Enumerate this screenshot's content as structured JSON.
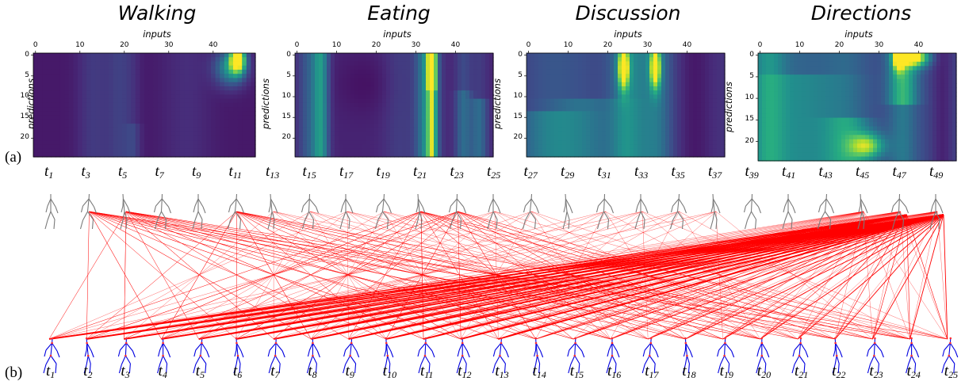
{
  "figure": {
    "label_a": "(a)",
    "label_b": "(b)"
  },
  "heatmaps": {
    "x_axis_title": "inputs",
    "y_axis_title": "predictions",
    "x_ticks": [
      "0",
      "10",
      "20",
      "30",
      "40"
    ],
    "y_ticks": [
      "0",
      "5",
      "10",
      "15",
      "20"
    ],
    "colormap": [
      "#440154",
      "#472c7a",
      "#3b518b",
      "#2c718e",
      "#21908d",
      "#27ad81",
      "#5cc863",
      "#aadc32",
      "#fde725"
    ],
    "panels": [
      {
        "title": "Walking"
      },
      {
        "title": "Eating"
      },
      {
        "title": "Discussion"
      },
      {
        "title": "Directions"
      }
    ]
  },
  "inputs_row": {
    "labels": [
      {
        "base": "t",
        "sub": "1"
      },
      {
        "base": "t",
        "sub": "3"
      },
      {
        "base": "t",
        "sub": "5"
      },
      {
        "base": "t",
        "sub": "7"
      },
      {
        "base": "t",
        "sub": "9"
      },
      {
        "base": "t",
        "sub": "11"
      },
      {
        "base": "t",
        "sub": "13"
      },
      {
        "base": "t",
        "sub": "15"
      },
      {
        "base": "t",
        "sub": "17"
      },
      {
        "base": "t",
        "sub": "19"
      },
      {
        "base": "t",
        "sub": "21"
      },
      {
        "base": "t",
        "sub": "23"
      },
      {
        "base": "t",
        "sub": "25"
      },
      {
        "base": "t",
        "sub": "27"
      },
      {
        "base": "t",
        "sub": "29"
      },
      {
        "base": "t",
        "sub": "31"
      },
      {
        "base": "t",
        "sub": "33"
      },
      {
        "base": "t",
        "sub": "35"
      },
      {
        "base": "t",
        "sub": "37"
      },
      {
        "base": "t",
        "sub": "39"
      },
      {
        "base": "t",
        "sub": "41"
      },
      {
        "base": "t",
        "sub": "43"
      },
      {
        "base": "t",
        "sub": "45"
      },
      {
        "base": "t",
        "sub": "47"
      },
      {
        "base": "t",
        "sub": "49"
      }
    ],
    "figure_color": "#7a7a7a"
  },
  "predictions_row": {
    "labels": [
      {
        "base": "t",
        "sub": "1"
      },
      {
        "base": "t",
        "sub": "2"
      },
      {
        "base": "t",
        "sub": "3"
      },
      {
        "base": "t",
        "sub": "4"
      },
      {
        "base": "t",
        "sub": "5"
      },
      {
        "base": "t",
        "sub": "6"
      },
      {
        "base": "t",
        "sub": "7"
      },
      {
        "base": "t",
        "sub": "8"
      },
      {
        "base": "t",
        "sub": "9"
      },
      {
        "base": "t",
        "sub": "10"
      },
      {
        "base": "t",
        "sub": "11"
      },
      {
        "base": "t",
        "sub": "12"
      },
      {
        "base": "t",
        "sub": "13"
      },
      {
        "base": "t",
        "sub": "14"
      },
      {
        "base": "t",
        "sub": "15"
      },
      {
        "base": "t",
        "sub": "16"
      },
      {
        "base": "t",
        "sub": "17"
      },
      {
        "base": "t",
        "sub": "18"
      },
      {
        "base": "t",
        "sub": "19"
      },
      {
        "base": "t",
        "sub": "20"
      },
      {
        "base": "t",
        "sub": "21"
      },
      {
        "base": "t",
        "sub": "22"
      },
      {
        "base": "t",
        "sub": "23"
      },
      {
        "base": "t",
        "sub": "24"
      },
      {
        "base": "t",
        "sub": "25"
      }
    ],
    "figure_color": "#0000e0",
    "joint_color": "#ff3030"
  },
  "attention_lines": {
    "color": "#ff0000",
    "strong_sources": [
      23,
      24
    ],
    "medium_sources": [
      1,
      2,
      5,
      10,
      11
    ]
  }
}
